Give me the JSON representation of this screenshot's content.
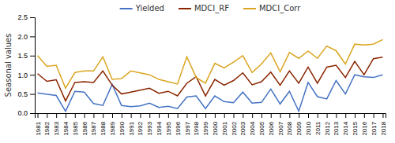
{
  "chart_data": {
    "type": "line",
    "x": [
      1981,
      1982,
      1983,
      1984,
      1985,
      1986,
      1987,
      1988,
      1989,
      1990,
      1991,
      1992,
      1993,
      1994,
      1995,
      1996,
      1997,
      1998,
      1999,
      2000,
      2001,
      2002,
      2003,
      2004,
      2005,
      2006,
      2007,
      2008,
      2009,
      2010,
      2011,
      2012,
      2013,
      2014,
      2015,
      2016,
      2017,
      2018
    ],
    "series": [
      {
        "name": "Yielded",
        "color": "#4472c4",
        "values": [
          0.53,
          0.49,
          0.46,
          0.05,
          0.57,
          0.55,
          0.25,
          0.2,
          0.75,
          0.2,
          0.17,
          0.19,
          0.26,
          0.15,
          0.18,
          0.12,
          0.42,
          0.45,
          0.12,
          0.45,
          0.3,
          0.27,
          0.55,
          0.26,
          0.28,
          0.63,
          0.24,
          0.57,
          0.05,
          0.8,
          0.43,
          0.37,
          0.85,
          0.5,
          1.0,
          0.95,
          0.93,
          1.0
        ]
      },
      {
        "name": "MDCI_RF",
        "color": "#8B2500",
        "values": [
          1.03,
          0.83,
          0.87,
          0.32,
          0.8,
          0.82,
          0.8,
          1.1,
          0.73,
          0.5,
          0.55,
          0.6,
          0.65,
          0.52,
          0.57,
          0.45,
          0.78,
          0.95,
          0.45,
          0.88,
          0.73,
          0.85,
          1.05,
          0.74,
          0.82,
          1.07,
          0.73,
          1.1,
          0.78,
          1.2,
          0.78,
          1.2,
          1.25,
          0.93,
          1.35,
          1.0,
          1.42,
          1.46
        ]
      },
      {
        "name": "MDCI_Corr",
        "color": "#DAA520",
        "values": [
          1.5,
          1.22,
          1.25,
          0.65,
          1.06,
          1.1,
          1.1,
          1.47,
          0.88,
          0.9,
          1.1,
          1.05,
          1.0,
          0.88,
          0.82,
          0.76,
          1.47,
          0.93,
          0.78,
          1.3,
          1.18,
          1.33,
          1.5,
          1.06,
          1.28,
          1.57,
          1.08,
          1.58,
          1.43,
          1.62,
          1.43,
          1.75,
          1.63,
          1.28,
          1.8,
          1.78,
          1.8,
          1.92
        ]
      }
    ],
    "y_label": "Seasonal values",
    "xlim": [
      1980.7,
      2018.3
    ],
    "xticks": [
      1981,
      1982,
      1983,
      1984,
      1985,
      1986,
      1987,
      1988,
      1989,
      1990,
      1991,
      1992,
      1993,
      1994,
      1995,
      1996,
      1997,
      1998,
      1999,
      2000,
      2001,
      2002,
      2003,
      2004,
      2005,
      2006,
      2007,
      2008,
      2009,
      2010,
      2011,
      2012,
      2013,
      2014,
      2015,
      2016,
      2017,
      2018
    ],
    "ylim": [
      0.0,
      2.5
    ],
    "yticks": [
      {
        "value": 0.0,
        "label": "0.0"
      },
      0.5,
      {
        "value": 1.0,
        "label": "1.0"
      },
      1.5,
      {
        "value": 2.0,
        "label": "2.0"
      },
      2.5
    ],
    "grid": false,
    "legend": "top"
  }
}
